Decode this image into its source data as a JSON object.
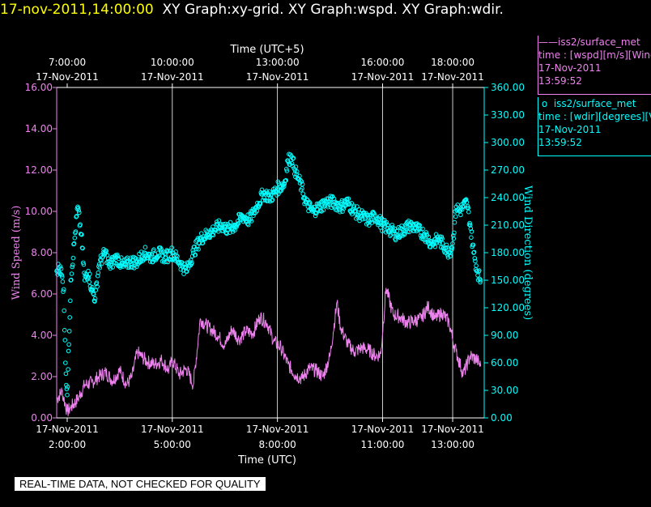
{
  "header": {
    "datetime": "17-nov-2011,14:00:00",
    "graphs": "XY Graph:xy-grid.  XY Graph:wspd.  XY Graph:wdir."
  },
  "disclaimer": "REAL-TIME DATA, NOT CHECKED FOR QUALITY",
  "legend": [
    {
      "symbol": "——",
      "source": "iss2/surface_met",
      "variable": "time : [wspd][m/s][Wind",
      "date": "17-Nov-2011",
      "time": "13:59:52",
      "color": "#ee82ee"
    },
    {
      "symbol": "o",
      "source": "iss2/surface_met",
      "variable": "time : [wdir][degrees][V",
      "date": "17-Nov-2011",
      "time": "13:59:52",
      "color": "#00ffff"
    }
  ],
  "chart_data": {
    "type": "line",
    "xlabel": "Time (UTC)",
    "x2label": "Time (UTC+5)",
    "ylabel": "Wind Speed (m/s)",
    "y2label": "Wind Direction (degrees)",
    "xlim": [
      1.7,
      13.9
    ],
    "ylim": [
      0,
      16
    ],
    "y2lim": [
      0,
      360
    ],
    "yticks": [
      "0.00",
      "2.00",
      "4.00",
      "6.00",
      "8.00",
      "10.00",
      "12.00",
      "14.00",
      "16.00"
    ],
    "y2ticks": [
      "0.00",
      "30.00",
      "60.00",
      "90.00",
      "120.00",
      "150.00",
      "180.00",
      "210.00",
      "240.00",
      "270.00",
      "300.00",
      "330.00",
      "360.00"
    ],
    "yticks_values": [
      0,
      2,
      4,
      6,
      8,
      10,
      12,
      14,
      16
    ],
    "y2ticks_values": [
      0,
      30,
      60,
      90,
      120,
      150,
      180,
      210,
      240,
      270,
      300,
      330,
      360
    ],
    "xticks_bottom": [
      {
        "x": 2,
        "date": "17-Nov-2011",
        "time": "2:00:00"
      },
      {
        "x": 5,
        "date": "17-Nov-2011",
        "time": "5:00:00"
      },
      {
        "x": 8,
        "date": "17-Nov-2011",
        "time": "8:00:00"
      },
      {
        "x": 11,
        "date": "17-Nov-2011",
        "time": "11:00:00"
      },
      {
        "x": 13,
        "date": "17-Nov-2011",
        "time": "13:00:00"
      }
    ],
    "xticks_top": [
      {
        "x": 2,
        "time": "7:00:00",
        "date": "17-Nov-2011"
      },
      {
        "x": 5,
        "time": "10:00:00",
        "date": "17-Nov-2011"
      },
      {
        "x": 8,
        "time": "13:00:00",
        "date": "17-Nov-2011"
      },
      {
        "x": 11,
        "time": "16:00:00",
        "date": "17-Nov-2011"
      },
      {
        "x": 13,
        "time": "18:00:00",
        "date": "17-Nov-2011"
      }
    ],
    "grid_x": [
      5,
      8,
      11,
      13
    ],
    "colors": {
      "axis": "#ffffff",
      "wspd": "#ee82ee",
      "wdir": "#00ffff",
      "grid": "#ffffff"
    },
    "series": [
      {
        "name": "iss2/surface_met wspd",
        "axis": "left",
        "style": "line",
        "x": [
          1.7,
          1.85,
          2.0,
          2.1,
          2.3,
          2.5,
          2.7,
          2.9,
          3.1,
          3.3,
          3.5,
          3.7,
          3.85,
          4.0,
          4.1,
          4.3,
          4.5,
          4.7,
          4.9,
          5.0,
          5.2,
          5.4,
          5.6,
          5.8,
          5.95,
          6.1,
          6.3,
          6.5,
          6.7,
          6.9,
          7.1,
          7.3,
          7.5,
          7.7,
          7.9,
          8.1,
          8.3,
          8.5,
          8.7,
          8.9,
          9.1,
          9.3,
          9.5,
          9.7,
          9.8,
          10.0,
          10.2,
          10.4,
          10.6,
          10.8,
          10.95,
          11.1,
          11.3,
          11.5,
          11.7,
          11.9,
          12.1,
          12.3,
          12.5,
          12.7,
          12.9,
          13.0,
          13.1,
          13.3,
          13.5,
          13.7,
          13.8
        ],
        "values": [
          0.9,
          1.3,
          0.3,
          0.5,
          0.9,
          1.6,
          1.7,
          2.0,
          2.2,
          1.8,
          2.3,
          1.6,
          2.0,
          3.2,
          3.0,
          2.7,
          2.6,
          2.8,
          2.3,
          2.8,
          2.1,
          2.4,
          1.6,
          4.8,
          4.5,
          4.3,
          4.0,
          3.5,
          4.3,
          3.8,
          4.2,
          4.1,
          4.9,
          4.6,
          3.7,
          3.4,
          2.6,
          2.1,
          1.9,
          2.4,
          2.3,
          2.0,
          3.0,
          5.6,
          4.4,
          3.6,
          3.2,
          3.4,
          3.3,
          3.0,
          3.1,
          6.3,
          5.0,
          4.9,
          4.6,
          4.7,
          4.8,
          5.4,
          4.8,
          5.1,
          4.6,
          3.8,
          3.2,
          2.1,
          3.0,
          2.8,
          2.5
        ]
      },
      {
        "name": "iss2/surface_met wdir",
        "axis": "right",
        "style": "circles",
        "x": [
          1.7,
          1.8,
          1.9,
          1.95,
          2.0,
          2.05,
          2.1,
          2.2,
          2.3,
          2.4,
          2.5,
          2.6,
          2.7,
          2.8,
          2.9,
          3.0,
          3.1,
          3.2,
          3.4,
          3.6,
          3.8,
          4.0,
          4.2,
          4.4,
          4.6,
          4.8,
          5.0,
          5.2,
          5.3,
          5.4,
          5.5,
          5.6,
          5.8,
          6.0,
          6.2,
          6.4,
          6.6,
          6.8,
          7.0,
          7.2,
          7.4,
          7.6,
          7.8,
          8.0,
          8.2,
          8.3,
          8.4,
          8.5,
          8.6,
          8.7,
          8.8,
          9.0,
          9.2,
          9.4,
          9.6,
          9.8,
          10.0,
          10.2,
          10.4,
          10.6,
          10.8,
          11.0,
          11.2,
          11.4,
          11.6,
          11.8,
          12.0,
          12.2,
          12.4,
          12.6,
          12.8,
          12.9,
          13.0,
          13.1,
          13.2,
          13.3,
          13.4,
          13.5,
          13.6,
          13.7,
          13.8
        ],
        "values": [
          160,
          165,
          140,
          60,
          25,
          80,
          150,
          190,
          230,
          200,
          150,
          160,
          140,
          130,
          165,
          175,
          180,
          165,
          175,
          165,
          170,
          170,
          180,
          175,
          180,
          175,
          180,
          170,
          165,
          160,
          170,
          180,
          195,
          200,
          205,
          210,
          205,
          210,
          220,
          215,
          230,
          245,
          240,
          250,
          255,
          280,
          285,
          270,
          260,
          250,
          235,
          225,
          230,
          235,
          235,
          230,
          235,
          225,
          220,
          215,
          220,
          210,
          205,
          200,
          205,
          210,
          205,
          200,
          190,
          195,
          185,
          180,
          190,
          230,
          225,
          230,
          235,
          210,
          180,
          160,
          150
        ]
      }
    ]
  }
}
